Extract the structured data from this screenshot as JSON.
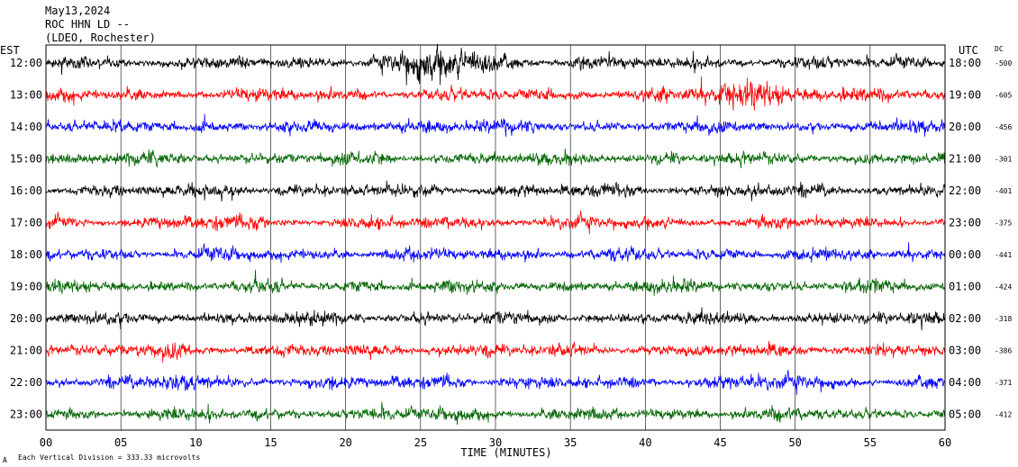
{
  "header": {
    "date": "May13,2024",
    "station": "ROC HHN LD --",
    "location": "(LDEO, Rochester)"
  },
  "footer": {
    "scale_note": "Each Vertical Division =  333.33 microvolts",
    "corner_mark": "A"
  },
  "chart_data": {
    "type": "line",
    "title": "",
    "xlabel": "TIME (MINUTES)",
    "ylabel_left": "EST",
    "ylabel_right": "UTC",
    "dc_header": "DC",
    "xlim": [
      0,
      60
    ],
    "x_ticks": [
      {
        "value": 0,
        "label": "00"
      },
      {
        "value": 5,
        "label": "05"
      },
      {
        "value": 10,
        "label": "10"
      },
      {
        "value": 15,
        "label": "15"
      },
      {
        "value": 20,
        "label": "20"
      },
      {
        "value": 25,
        "label": "25"
      },
      {
        "value": 30,
        "label": "30"
      },
      {
        "value": 35,
        "label": "35"
      },
      {
        "value": 40,
        "label": "40"
      },
      {
        "value": 45,
        "label": "45"
      },
      {
        "value": 50,
        "label": "50"
      },
      {
        "value": 55,
        "label": "55"
      },
      {
        "value": 60,
        "label": "60"
      }
    ],
    "grid": true,
    "line_colors": [
      "#000000",
      "#ff0000",
      "#0000ff",
      "#006400"
    ],
    "rows": [
      {
        "est": "12:00",
        "utc": "18:00",
        "dc": "-500"
      },
      {
        "est": "13:00",
        "utc": "19:00",
        "dc": "-605"
      },
      {
        "est": "14:00",
        "utc": "20:00",
        "dc": "-456"
      },
      {
        "est": "15:00",
        "utc": "21:00",
        "dc": "-301"
      },
      {
        "est": "16:00",
        "utc": "22:00",
        "dc": "-401"
      },
      {
        "est": "17:00",
        "utc": "23:00",
        "dc": "-375"
      },
      {
        "est": "18:00",
        "utc": "00:00",
        "dc": "-441"
      },
      {
        "est": "19:00",
        "utc": "01:00",
        "dc": "-424"
      },
      {
        "est": "20:00",
        "utc": "02:00",
        "dc": "-318"
      },
      {
        "est": "21:00",
        "utc": "03:00",
        "dc": "-386"
      },
      {
        "est": "22:00",
        "utc": "04:00",
        "dc": "-371"
      },
      {
        "est": "23:00",
        "utc": "05:00",
        "dc": "-412"
      }
    ]
  }
}
